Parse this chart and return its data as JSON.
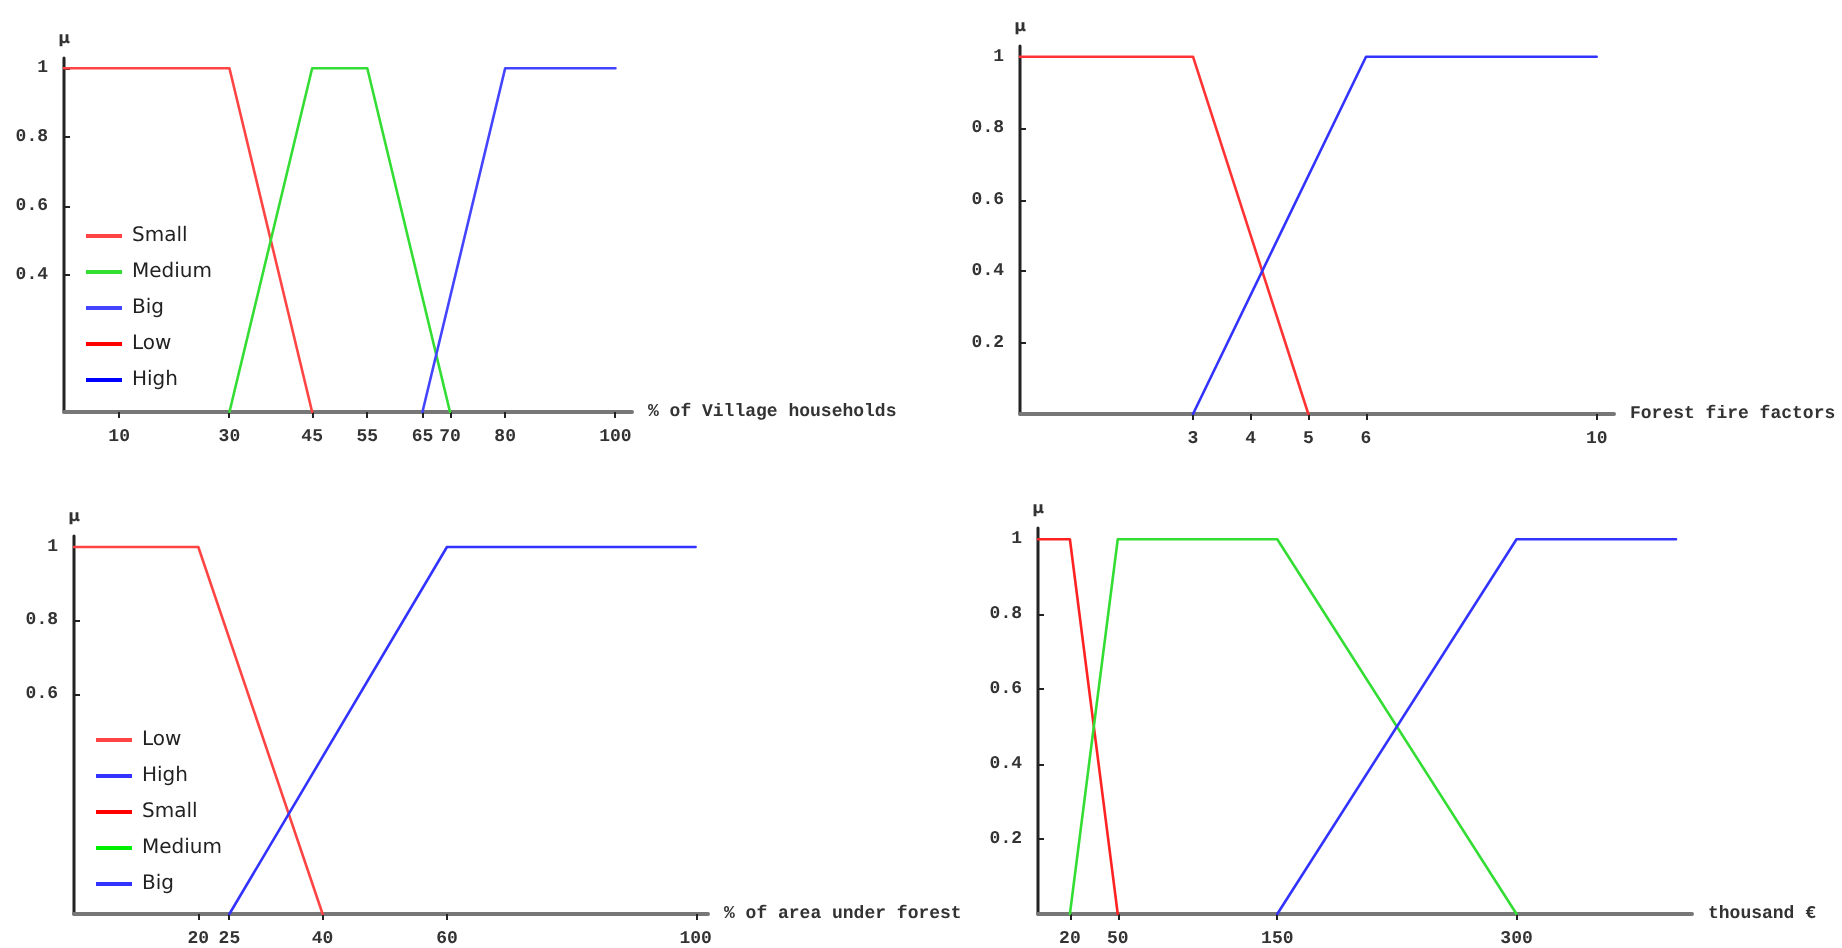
{
  "chart_data": [
    {
      "type": "line",
      "xlabel": "% of Village households",
      "ylabel": "μ",
      "xlim": [
        0,
        103
      ],
      "ylim": [
        0,
        1.03
      ],
      "xticks": [
        10,
        30,
        45,
        55,
        65,
        70,
        80,
        100
      ],
      "yticks": [
        0.4,
        0.6,
        0.8,
        1
      ],
      "legend": "bottom left",
      "series": [
        {
          "name": "Small",
          "color": "#ff4444",
          "x": [
            0,
            30,
            45
          ],
          "values": [
            1,
            1,
            0
          ]
        },
        {
          "name": "Medium",
          "color": "#33dd33",
          "x": [
            30,
            45,
            55,
            70
          ],
          "values": [
            0,
            1,
            1,
            0
          ]
        },
        {
          "name": "Big",
          "color": "#4444ff",
          "x": [
            65,
            80,
            100
          ],
          "values": [
            0,
            1,
            1
          ]
        },
        {
          "name": "Low",
          "color": "#ff0000"
        },
        {
          "name": "High",
          "color": "#0000ff"
        }
      ]
    },
    {
      "type": "line",
      "xlabel": "Forest fire factors",
      "ylabel": "μ",
      "xlim": [
        0,
        10.3
      ],
      "ylim": [
        0,
        1.03
      ],
      "xticks": [
        3,
        4,
        5,
        6,
        10
      ],
      "yticks": [
        0.2,
        0.4,
        0.6,
        0.8,
        1
      ],
      "series": [
        {
          "color": "#ff3333",
          "x": [
            0,
            3,
            5
          ],
          "values": [
            1,
            1,
            0
          ]
        },
        {
          "color": "#3333ff",
          "x": [
            3,
            6,
            10
          ],
          "values": [
            0,
            1,
            1
          ]
        }
      ]
    },
    {
      "type": "line",
      "xlabel": "% of area under forest",
      "ylabel": "μ",
      "xlim": [
        0,
        102
      ],
      "ylim": [
        0,
        1.03
      ],
      "xticks": [
        20,
        25,
        40,
        60,
        100
      ],
      "yticks": [
        0.6,
        0.8,
        1
      ],
      "legend": "bottom left",
      "series": [
        {
          "name": "Low",
          "color": "#ff4444",
          "x": [
            0,
            20,
            40
          ],
          "values": [
            1,
            1,
            0
          ]
        },
        {
          "name": "High",
          "color": "#3333ff",
          "x": [
            25,
            60,
            100
          ],
          "values": [
            0,
            1,
            1
          ]
        },
        {
          "name": "Small",
          "color": "#ff0000"
        },
        {
          "name": "Medium",
          "color": "#00ee00"
        },
        {
          "name": "Big",
          "color": "#3333ff"
        }
      ]
    },
    {
      "type": "line",
      "xlabel": "thousand €",
      "ylabel": "μ",
      "xlim": [
        0,
        410
      ],
      "ylim": [
        0,
        1.03
      ],
      "xticks": [
        20,
        50,
        150,
        300
      ],
      "yticks": [
        0.2,
        0.4,
        0.6,
        0.8,
        1
      ],
      "series": [
        {
          "color": "#ff2222",
          "x": [
            0,
            20,
            50
          ],
          "values": [
            1,
            1,
            0
          ]
        },
        {
          "color": "#33dd33",
          "x": [
            20,
            50,
            150,
            300
          ],
          "values": [
            0,
            1,
            1,
            0
          ]
        },
        {
          "color": "#3333ff",
          "x": [
            150,
            300,
            400
          ],
          "values": [
            0,
            1,
            1
          ]
        }
      ]
    }
  ]
}
